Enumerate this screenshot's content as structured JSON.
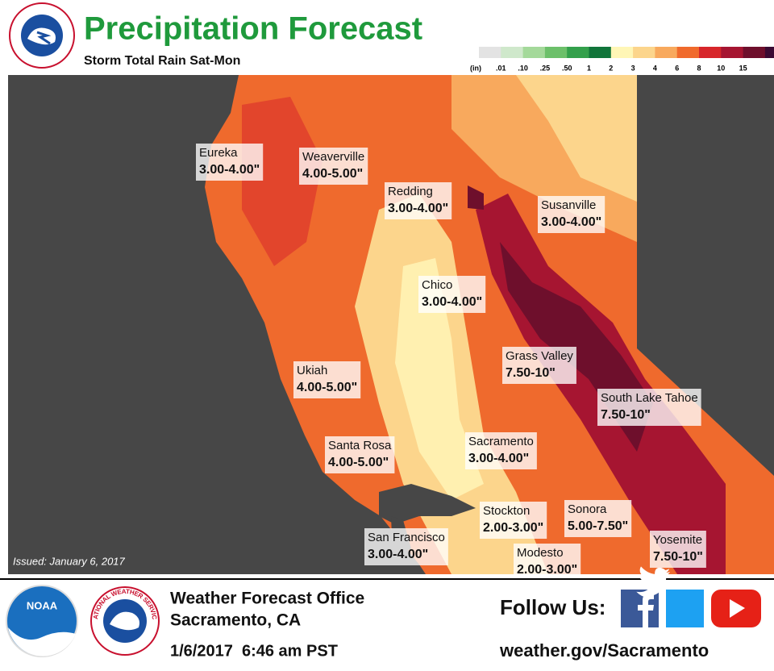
{
  "header": {
    "title": "Precipitation Forecast",
    "subtitle": "Storm Total Rain Sat-Mon"
  },
  "legend": {
    "unit": "(in)",
    "labels": [
      ".01",
      ".10",
      ".25",
      ".50",
      "1",
      "2",
      "3",
      "4",
      "6",
      "8",
      "10",
      "15"
    ],
    "colors": [
      "#e3e3e3",
      "#cfe8cb",
      "#a4d99a",
      "#6cc06a",
      "#33a04b",
      "#11753a",
      "#fff6b6",
      "#fcd58c",
      "#f8a95d",
      "#f06a2c",
      "#d7262b",
      "#a61531",
      "#6e0f2c",
      "#3a0a33"
    ]
  },
  "map": {
    "labels": [
      {
        "name": "Eureka",
        "amount": "3.00-4.00\""
      },
      {
        "name": "Weaverville",
        "amount": "4.00-5.00\""
      },
      {
        "name": "Redding",
        "amount": "3.00-4.00\""
      },
      {
        "name": "Susanville",
        "amount": "3.00-4.00\""
      },
      {
        "name": "Chico",
        "amount": "3.00-4.00\""
      },
      {
        "name": "Grass Valley",
        "amount": "7.50-10\""
      },
      {
        "name": "Ukiah",
        "amount": "4.00-5.00\""
      },
      {
        "name": "South Lake Tahoe",
        "amount": "7.50-10\""
      },
      {
        "name": "Santa Rosa",
        "amount": "4.00-5.00\""
      },
      {
        "name": "Sacramento",
        "amount": "3.00-4.00\""
      },
      {
        "name": "Stockton",
        "amount": "2.00-3.00\""
      },
      {
        "name": "Sonora",
        "amount": "5.00-7.50\""
      },
      {
        "name": "San Francisco",
        "amount": "3.00-4.00\""
      },
      {
        "name": "Modesto",
        "amount": "2.00-3.00\""
      },
      {
        "name": "Yosemite",
        "amount": "7.50-10\""
      }
    ],
    "issued": "Issued: January 6, 2017"
  },
  "logos": {
    "noaa": "NOAA",
    "nws": "NATIONAL WEATHER SERVICE"
  },
  "footer": {
    "office": "Weather Forecast Office",
    "location": "Sacramento, CA",
    "datetime": "1/6/2017  6:46 am PST",
    "follow": "Follow Us:",
    "url": "weather.gov/Sacramento"
  }
}
